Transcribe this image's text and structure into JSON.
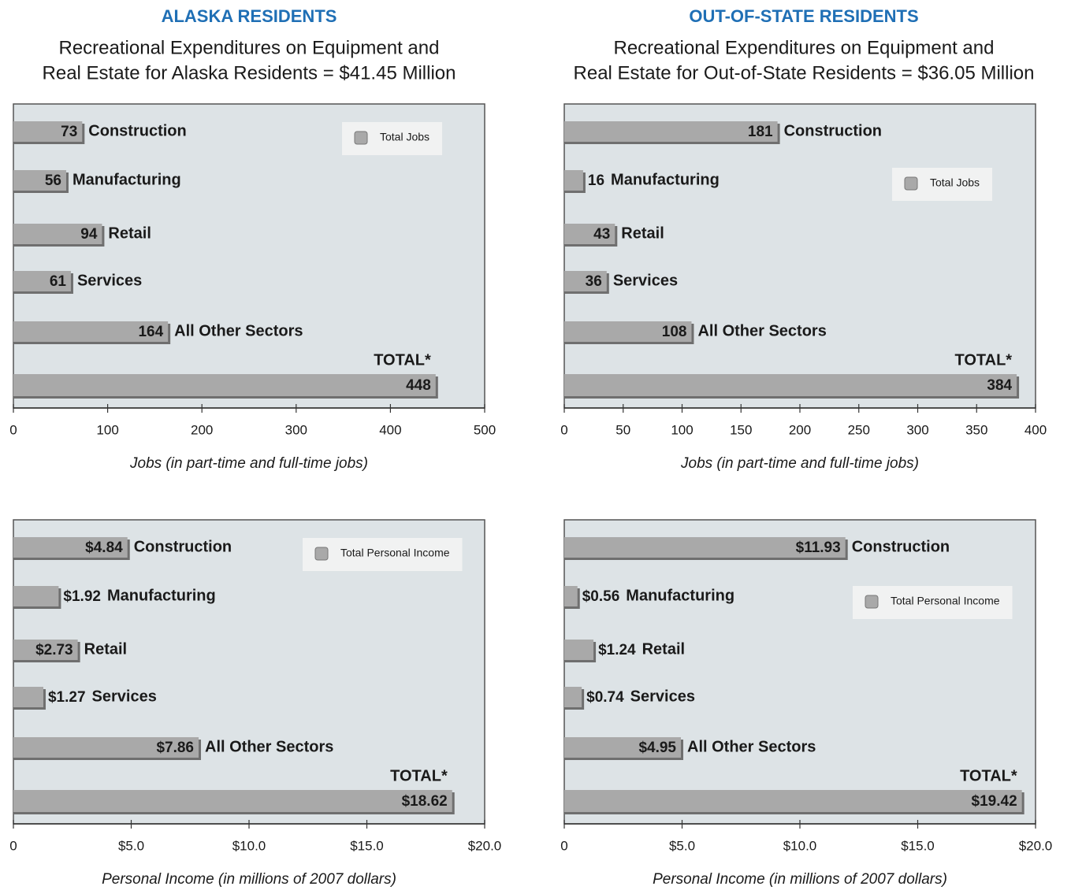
{
  "chart_data": [
    {
      "type": "bar",
      "orientation": "horizontal",
      "title": "ALASKA RESIDENTS",
      "subtitle": [
        "Recreational Expenditures on Equipment and",
        "Real Estate for Alaska Residents = $41.45 Million"
      ],
      "categories": [
        "Construction",
        "Manufacturing",
        "Retail",
        "Services",
        "All Other Sectors",
        "TOTAL*"
      ],
      "series": [
        {
          "name": "Total Jobs",
          "color": "#a9a9a9",
          "values": [
            73,
            56,
            94,
            61,
            164,
            448
          ]
        }
      ],
      "xlim": [
        0,
        500
      ],
      "xticks": [
        0,
        100,
        200,
        300,
        400,
        500
      ],
      "xlabel": "Jobs (in part-time and full-time jobs)",
      "legend": "upper right"
    },
    {
      "type": "bar",
      "orientation": "horizontal",
      "title": "OUT-OF-STATE RESIDENTS",
      "subtitle": [
        "Recreational Expenditures on Equipment and",
        "Real Estate for Out-of-State Residents = $36.05 Million"
      ],
      "categories": [
        "Construction",
        "Manufacturing",
        "Retail",
        "Services",
        "All Other Sectors",
        "TOTAL*"
      ],
      "series": [
        {
          "name": "Total Jobs",
          "color": "#a9a9a9",
          "values": [
            181,
            16,
            43,
            36,
            108,
            384
          ]
        }
      ],
      "xlim": [
        0,
        400
      ],
      "xticks": [
        0,
        50,
        100,
        150,
        200,
        250,
        300,
        350,
        400
      ],
      "xlabel": "Jobs (in part-time and full-time jobs)",
      "legend": "upper right"
    },
    {
      "type": "bar",
      "orientation": "horizontal",
      "categories": [
        "Construction",
        "Manufacturing",
        "Retail",
        "Services",
        "All Other Sectors",
        "TOTAL*"
      ],
      "series": [
        {
          "name": "Total Personal Income",
          "color": "#a9a9a9",
          "values": [
            4.84,
            1.92,
            2.73,
            1.27,
            7.86,
            18.62
          ],
          "value_labels": [
            "$4.84",
            "$1.92",
            "$2.73",
            "$1.27",
            "$7.86",
            "$18.62"
          ]
        }
      ],
      "xlim": [
        0,
        20
      ],
      "xticks": [
        0,
        {
          "value": 5,
          "label": "$5.0"
        },
        {
          "value": 10,
          "label": "$10.0"
        },
        {
          "value": 15,
          "label": "$15.0"
        },
        {
          "value": 20,
          "label": "$20.0"
        }
      ],
      "xlabel": "Personal Income (in millions of 2007 dollars)",
      "legend": "upper right"
    },
    {
      "type": "bar",
      "orientation": "horizontal",
      "categories": [
        "Construction",
        "Manufacturing",
        "Retail",
        "Services",
        "All Other Sectors",
        "TOTAL*"
      ],
      "series": [
        {
          "name": "Total Personal Income",
          "color": "#a9a9a9",
          "values": [
            11.93,
            0.56,
            1.24,
            0.74,
            4.95,
            19.42
          ],
          "value_labels": [
            "$11.93",
            "$0.56",
            "$1.24",
            "$0.74",
            "$4.95",
            "$19.42"
          ]
        }
      ],
      "xlim": [
        0,
        20
      ],
      "xticks": [
        0,
        {
          "value": 5,
          "label": "$5.0"
        },
        {
          "value": 10,
          "label": "$10.0"
        },
        {
          "value": 15,
          "label": "$15.0"
        },
        {
          "value": 20,
          "label": "$20.0"
        }
      ],
      "xlabel": "Personal Income (in millions of 2007 dollars)",
      "legend": "upper right"
    }
  ]
}
